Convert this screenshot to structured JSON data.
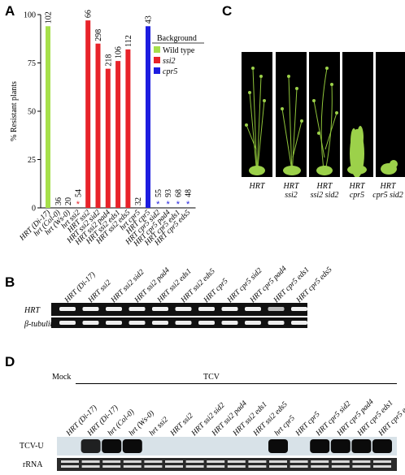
{
  "panels": {
    "A": "A",
    "B": "B",
    "C": "C",
    "D": "D"
  },
  "chart_data": {
    "type": "bar",
    "ylabel": "% Resistant plants",
    "ylim": [
      0,
      100
    ],
    "yticks": [
      "0",
      "25",
      "50",
      "75",
      "100"
    ],
    "categories": [
      "HRT (Di-17)",
      "hrt (Col-0)",
      "hrt (Ws-0)",
      "hrt ssi2",
      "HRT ssi2",
      "HRT ssi2 sid2",
      "HRT ssi2 pad4",
      "HRT ssi2 eds1",
      "HRT ssi2 eds5",
      "hrt cpr5",
      "HRT cpr5",
      "HRT cpr5 sid2",
      "HRT cpr5 pad4",
      "HRT cpr5 eds1",
      "HRT cpr5 eds5"
    ],
    "values": [
      94,
      0,
      0,
      0,
      97,
      85,
      72,
      76,
      82,
      0,
      94,
      0,
      0,
      0,
      0
    ],
    "n_labels": [
      "102",
      "36",
      "20",
      "54",
      "66",
      "298",
      "218",
      "106",
      "112",
      "32",
      "43",
      "55",
      "93",
      "68",
      "48"
    ],
    "markers": [
      "",
      "",
      "",
      "*",
      "",
      "",
      "",
      "",
      "",
      "",
      "",
      "*",
      "*",
      "*",
      "*"
    ],
    "series_colors": [
      "#a6e04a",
      "#a6e04a",
      "#a6e04a",
      "#e8232a",
      "#e8232a",
      "#e8232a",
      "#e8232a",
      "#e8232a",
      "#e8232a",
      "#1d1de0",
      "#1d1de0",
      "#1d1de0",
      "#1d1de0",
      "#1d1de0",
      "#1d1de0"
    ],
    "legend": {
      "title": "Background",
      "entries": [
        {
          "label": "Wild type",
          "color": "#a6e04a"
        },
        {
          "label": "ssi2",
          "color": "#e8232a"
        },
        {
          "label": "cpr5",
          "color": "#1d1de0"
        }
      ],
      "placement": "top-right"
    }
  },
  "panelC": {
    "labels": [
      [
        "HRT",
        ""
      ],
      [
        "HRT",
        "ssi2"
      ],
      [
        "HRT",
        "ssi2 sid2"
      ],
      [
        "HRT",
        "cpr5"
      ],
      [
        "HRT",
        "cpr5 sid2"
      ]
    ]
  },
  "panelB": {
    "lanes": [
      "HRT (Di-17)",
      "HRT ssi2",
      "HRT ssi2 sid2",
      "HRT ssi2 pad4",
      "HRT ssi2 eds1",
      "HRT ssi2 eds5",
      "HRT cpr5",
      "HRT cpr5 sid2",
      "HRT cpr5 pad4",
      "HRT cpr5 eds1",
      "HRT cpr5 eds5"
    ],
    "rows": [
      "HRT",
      "β-tubulin"
    ]
  },
  "panelD": {
    "mock": "Mock",
    "tcv": "TCV",
    "lanes": [
      "HRT (Di-17)",
      "HRT (Di-17)",
      "hrt (Col-0)",
      "hrt (Ws-0)",
      "hrt ssi2",
      "HRT ssi2",
      "HRT ssi2 sid2",
      "HRT ssi2 pad4",
      "HRT ssi2 eds1",
      "HRT ssi2 eds5",
      "hrt cpr5",
      "HRT cpr5",
      "HRT cpr5 sid2",
      "HRT cpr5 pad4",
      "HRT cpr5 eds1",
      "HRT cpr5 eds5"
    ],
    "rows": [
      "TCV-U",
      "rRNA"
    ]
  }
}
